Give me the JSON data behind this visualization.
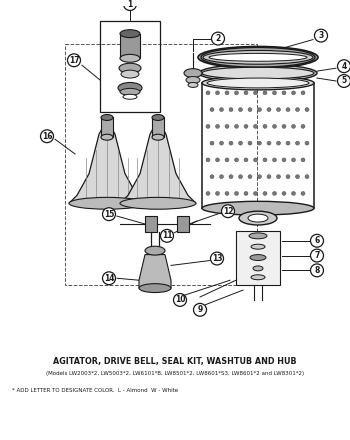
{
  "title": "AGITATOR, DRIVE BELL, SEAL KIT, WASHTUB AND HUB",
  "subtitle": "(Models LW2003*2, LW5003*2, LW6101*B, LW8501*2, LW8601*S3, LW8601*2 and LW8301*2)",
  "footnote": "* ADD LETTER TO DESIGNATE COLOR.  L - Almond  W - White",
  "bg_color": "#ffffff",
  "text_color": "#1a1a1a",
  "line_color": "#1a1a1a",
  "gray_fill": "#c8c8c8",
  "dark_fill": "#555555",
  "light_fill": "#e8e8e8"
}
